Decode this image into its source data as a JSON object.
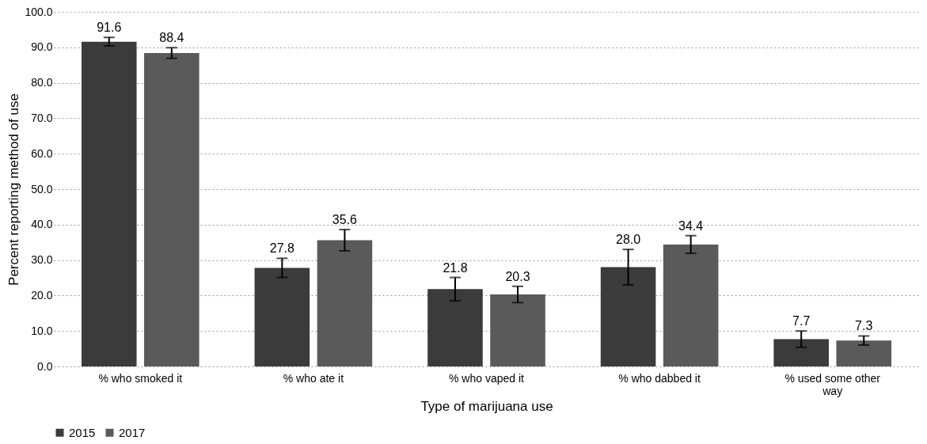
{
  "chart_data": {
    "type": "bar",
    "categories": [
      "% who smoked it",
      "% who ate it",
      "% who vaped it",
      "% who dabbed it",
      "% used some other way"
    ],
    "series": [
      {
        "name": "2015",
        "color": "#3b3b3b",
        "values": [
          91.6,
          27.8,
          21.8,
          28.0,
          7.7
        ],
        "errors": [
          1.2,
          2.7,
          3.3,
          5.0,
          2.3
        ],
        "value_labels": [
          "91.6",
          "27.8",
          "21.8",
          "28.0",
          "7.7"
        ]
      },
      {
        "name": "2017",
        "color": "#5a5a5a",
        "values": [
          88.4,
          35.6,
          20.3,
          34.4,
          7.3
        ],
        "errors": [
          1.5,
          3.0,
          2.3,
          2.5,
          1.3
        ],
        "value_labels": [
          "88.4",
          "35.6",
          "20.3",
          "34.4",
          "7.3"
        ]
      }
    ],
    "xlabel": "Type of marijuana use",
    "ylabel": "Percent reporting method of use",
    "ylim": [
      0,
      100
    ],
    "yticks": [
      {
        "value": 0,
        "label": "0.0"
      },
      {
        "value": 10,
        "label": "10.0"
      },
      {
        "value": 20,
        "label": "20.0"
      },
      {
        "value": 30,
        "label": "30.0"
      },
      {
        "value": 40,
        "label": "40.0"
      },
      {
        "value": 50,
        "label": "50.0"
      },
      {
        "value": 60,
        "label": "60.0"
      },
      {
        "value": 70,
        "label": "70.0"
      },
      {
        "value": 80,
        "label": "80.0"
      },
      {
        "value": 90,
        "label": "90.0"
      },
      {
        "value": 100,
        "label": "100.0"
      }
    ],
    "grid": "y",
    "legend": "bottom"
  }
}
